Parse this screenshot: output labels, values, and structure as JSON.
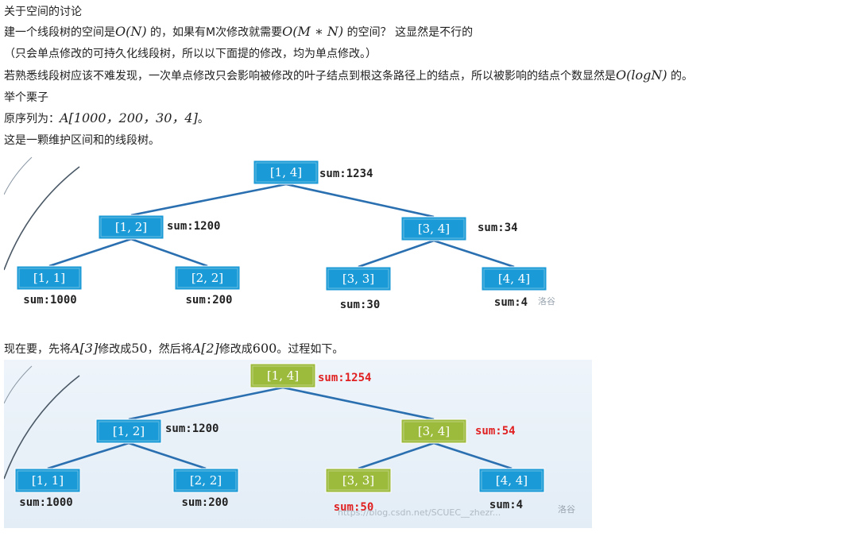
{
  "text": {
    "heading": "关于空间的讨论",
    "p1_a": "建一个线段树的空间是",
    "p1_m1": "O(N)",
    "p1_b": " 的，如果有M次修改就需要",
    "p1_m2": "O(M ∗ N)",
    "p1_c": " 的空间？ 这显然是不行的",
    "p2": "（只会单点修改的可持久化线段树，所以以下面提的修改，均为单点修改。）",
    "p3_a": "若熟悉线段树应该不难发现，一次单点修改只会影响被修改的叶子结点到根这条路径上的结点，所以被影响的结点个数显然是",
    "p3_m": "O(logN)",
    "p3_b": " 的。",
    "p4": "举个栗子",
    "p5_a": "原序列为：",
    "p5_m": "A[1000，200，30，4]",
    "p5_b": "。",
    "p6": "这是一颗维护区间和的线段树。",
    "p7_a": "现在要，先将",
    "p7_m1": "A[3]",
    "p7_b": "修改成",
    "p7_m2": "50",
    "p7_c": "，然后将",
    "p7_m3": "A[2]",
    "p7_d": "修改成",
    "p7_m4": "600",
    "p7_e": "。过程如下。"
  },
  "colors": {
    "node_blue": "#1a9ad6",
    "node_green": "#9cbb3c",
    "edge": "#2a6fb0",
    "red": "#e02020"
  },
  "tree1": {
    "nodes": [
      {
        "label": "[1, 4]",
        "sum": "sum:1234"
      },
      {
        "label": "[1, 2]",
        "sum": "sum:1200"
      },
      {
        "label": "[3, 4]",
        "sum": "sum:34"
      },
      {
        "label": "[1, 1]",
        "sum": "sum:1000"
      },
      {
        "label": "[2, 2]",
        "sum": "sum:200"
      },
      {
        "label": "[3, 3]",
        "sum": "sum:30"
      },
      {
        "label": "[4, 4]",
        "sum": "sum:4"
      }
    ],
    "watermark": "洛谷"
  },
  "tree2": {
    "nodes": [
      {
        "label": "[1, 4]",
        "sum": "sum:1254"
      },
      {
        "label": "[1, 2]",
        "sum": "sum:1200"
      },
      {
        "label": "[3, 4]",
        "sum": "sum:54"
      },
      {
        "label": "[1, 1]",
        "sum": "sum:1000"
      },
      {
        "label": "[2, 2]",
        "sum": "sum:200"
      },
      {
        "label": "[3, 3]",
        "sum": "sum:50"
      },
      {
        "label": "[4, 4]",
        "sum": "sum:4"
      }
    ],
    "watermark": "洛谷",
    "url_watermark": "https://blog.csdn.net/SCUEC__zhezr..."
  }
}
